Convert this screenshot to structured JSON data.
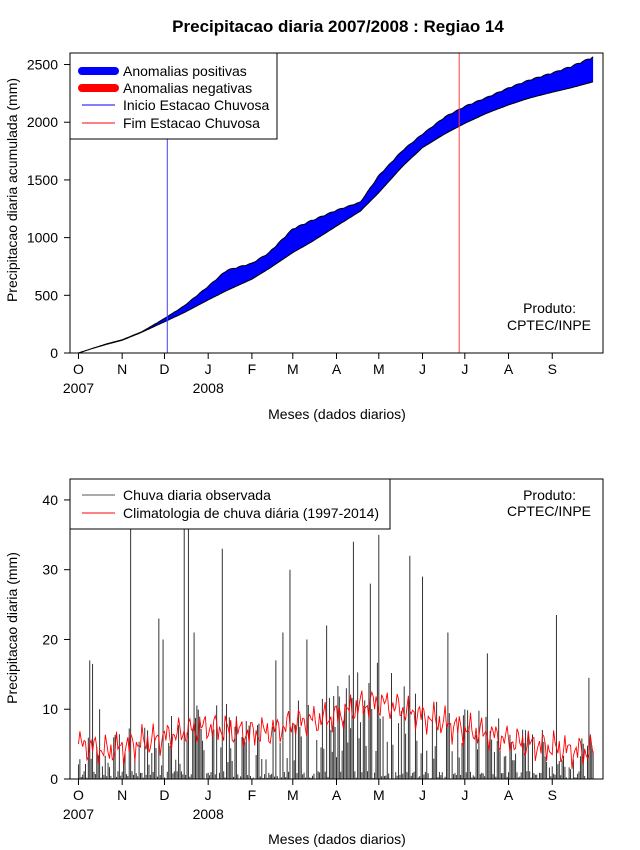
{
  "title": "Precipitacao diaria 2007/2008 : Regiao 14",
  "chart_data": [
    {
      "type": "area",
      "ylabel": "Precipitacao diaria acumulada (mm)",
      "xlabel": "Meses (dados diarios)",
      "ylim": [
        0,
        2600
      ],
      "yticks": [
        0,
        500,
        1000,
        1500,
        2000,
        2500
      ],
      "xlim_days": [
        -6,
        372
      ],
      "month_ticks": [
        {
          "label": "O",
          "day": 0
        },
        {
          "label": "N",
          "day": 31
        },
        {
          "label": "D",
          "day": 61
        },
        {
          "label": "J",
          "day": 92
        },
        {
          "label": "F",
          "day": 123
        },
        {
          "label": "M",
          "day": 152
        },
        {
          "label": "A",
          "day": 183
        },
        {
          "label": "M",
          "day": 213
        },
        {
          "label": "J",
          "day": 244
        },
        {
          "label": "J",
          "day": 274
        },
        {
          "label": "A",
          "day": 305
        },
        {
          "label": "S",
          "day": 336
        }
      ],
      "year_labels": [
        {
          "label": "2007",
          "day": 0
        },
        {
          "label": "2008",
          "day": 92
        }
      ],
      "legend": [
        {
          "label": "Anomalias positivas",
          "color": "#0000ff"
        },
        {
          "label": "Anomalias negativas",
          "color": "#ff0000"
        },
        {
          "label": "Inicio Estacao Chuvosa",
          "color": "#0000ff"
        },
        {
          "label": "Fim Estacao Chuvosa",
          "color": "#ff0000"
        }
      ],
      "credit_line1": "Produto:",
      "credit_line2": "CPTEC/INPE",
      "rainy_season_start_day": 63,
      "rainy_season_end_day": 270,
      "observed_cumulative": [
        {
          "day": 0,
          "value": 0
        },
        {
          "day": 10,
          "value": 40
        },
        {
          "day": 20,
          "value": 80
        },
        {
          "day": 31,
          "value": 115
        },
        {
          "day": 45,
          "value": 185
        },
        {
          "day": 61,
          "value": 300
        },
        {
          "day": 75,
          "value": 410
        },
        {
          "day": 92,
          "value": 580
        },
        {
          "day": 105,
          "value": 720
        },
        {
          "day": 123,
          "value": 780
        },
        {
          "day": 135,
          "value": 870
        },
        {
          "day": 152,
          "value": 1080
        },
        {
          "day": 165,
          "value": 1150
        },
        {
          "day": 183,
          "value": 1240
        },
        {
          "day": 200,
          "value": 1310
        },
        {
          "day": 213,
          "value": 1540
        },
        {
          "day": 230,
          "value": 1760
        },
        {
          "day": 244,
          "value": 1900
        },
        {
          "day": 260,
          "value": 2050
        },
        {
          "day": 274,
          "value": 2140
        },
        {
          "day": 290,
          "value": 2220
        },
        {
          "day": 305,
          "value": 2300
        },
        {
          "day": 320,
          "value": 2370
        },
        {
          "day": 336,
          "value": 2430
        },
        {
          "day": 350,
          "value": 2490
        },
        {
          "day": 365,
          "value": 2570
        }
      ],
      "climatology_cumulative": [
        {
          "day": 0,
          "value": 0
        },
        {
          "day": 10,
          "value": 40
        },
        {
          "day": 20,
          "value": 75
        },
        {
          "day": 31,
          "value": 110
        },
        {
          "day": 45,
          "value": 180
        },
        {
          "day": 61,
          "value": 270
        },
        {
          "day": 75,
          "value": 350
        },
        {
          "day": 92,
          "value": 460
        },
        {
          "day": 105,
          "value": 540
        },
        {
          "day": 123,
          "value": 640
        },
        {
          "day": 135,
          "value": 730
        },
        {
          "day": 152,
          "value": 870
        },
        {
          "day": 165,
          "value": 960
        },
        {
          "day": 183,
          "value": 1100
        },
        {
          "day": 200,
          "value": 1230
        },
        {
          "day": 213,
          "value": 1390
        },
        {
          "day": 230,
          "value": 1620
        },
        {
          "day": 244,
          "value": 1780
        },
        {
          "day": 260,
          "value": 1900
        },
        {
          "day": 274,
          "value": 1990
        },
        {
          "day": 290,
          "value": 2080
        },
        {
          "day": 305,
          "value": 2150
        },
        {
          "day": 320,
          "value": 2210
        },
        {
          "day": 336,
          "value": 2260
        },
        {
          "day": 350,
          "value": 2300
        },
        {
          "day": 365,
          "value": 2350
        }
      ]
    },
    {
      "type": "line",
      "ylabel": "Precipitacao diaria (mm)",
      "xlabel": "Meses (dados diarios)",
      "ylim": [
        0,
        43
      ],
      "yticks": [
        0,
        10,
        20,
        30,
        40
      ],
      "xlim_days": [
        -6,
        372
      ],
      "legend": [
        {
          "label": "Chuva diaria observada",
          "color": "#555555"
        },
        {
          "label": "Climatologia de chuva diária (1997-2014)",
          "color": "#ff0000"
        }
      ],
      "credit_line1": "Produto:",
      "credit_line2": "CPTEC/INPE",
      "observed_peaks": [
        {
          "day": 8,
          "value": 17
        },
        {
          "day": 10,
          "value": 16.5
        },
        {
          "day": 15,
          "value": 10
        },
        {
          "day": 37,
          "value": 40
        },
        {
          "day": 57,
          "value": 23
        },
        {
          "day": 60,
          "value": 20
        },
        {
          "day": 75,
          "value": 43
        },
        {
          "day": 78,
          "value": 43
        },
        {
          "day": 82,
          "value": 21
        },
        {
          "day": 102,
          "value": 33
        },
        {
          "day": 140,
          "value": 17
        },
        {
          "day": 145,
          "value": 21
        },
        {
          "day": 150,
          "value": 30
        },
        {
          "day": 162,
          "value": 20
        },
        {
          "day": 176,
          "value": 22
        },
        {
          "day": 195,
          "value": 34
        },
        {
          "day": 207,
          "value": 28
        },
        {
          "day": 213,
          "value": 35
        },
        {
          "day": 235,
          "value": 32
        },
        {
          "day": 244,
          "value": 29
        },
        {
          "day": 262,
          "value": 21
        },
        {
          "day": 290,
          "value": 18
        },
        {
          "day": 339,
          "value": 23.5
        },
        {
          "day": 362,
          "value": 14.5
        }
      ],
      "climatology_anchors": [
        {
          "day": 0,
          "value": 5
        },
        {
          "day": 20,
          "value": 4
        },
        {
          "day": 40,
          "value": 5
        },
        {
          "day": 61,
          "value": 6
        },
        {
          "day": 80,
          "value": 7
        },
        {
          "day": 92,
          "value": 7.5
        },
        {
          "day": 123,
          "value": 6.5
        },
        {
          "day": 140,
          "value": 7
        },
        {
          "day": 152,
          "value": 8
        },
        {
          "day": 170,
          "value": 8.5
        },
        {
          "day": 183,
          "value": 9
        },
        {
          "day": 200,
          "value": 10.5
        },
        {
          "day": 213,
          "value": 11
        },
        {
          "day": 230,
          "value": 10
        },
        {
          "day": 244,
          "value": 9
        },
        {
          "day": 260,
          "value": 8
        },
        {
          "day": 274,
          "value": 7
        },
        {
          "day": 290,
          "value": 6.5
        },
        {
          "day": 305,
          "value": 5.5
        },
        {
          "day": 320,
          "value": 5
        },
        {
          "day": 336,
          "value": 4.5
        },
        {
          "day": 350,
          "value": 4
        },
        {
          "day": 365,
          "value": 4
        }
      ]
    }
  ]
}
